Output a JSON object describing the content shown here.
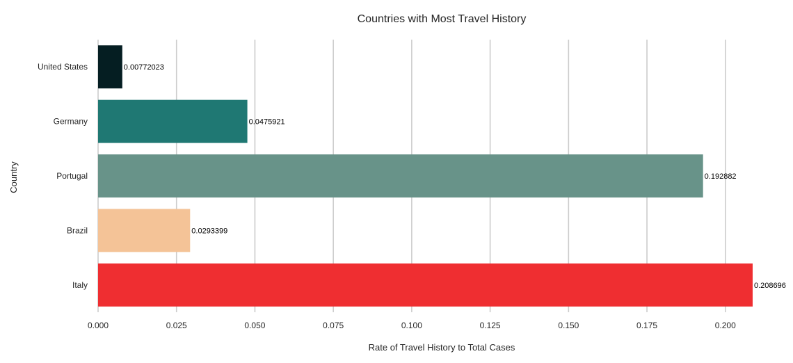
{
  "chart_data": {
    "type": "bar",
    "orientation": "horizontal",
    "title": "Countries with Most Travel History",
    "xlabel": "Rate of Travel History to Total Cases",
    "ylabel": "Country",
    "categories": [
      "United States",
      "Germany",
      "Portugal",
      "Brazil",
      "Italy"
    ],
    "values": [
      0.00772023,
      0.0475921,
      0.192882,
      0.0293399,
      0.208696
    ],
    "value_labels": [
      "0.00772023",
      "0.0475921",
      "0.192882",
      "0.0293399",
      "0.208696"
    ],
    "colors": [
      "#051e22",
      "#1f7873",
      "#689389",
      "#f4c397",
      "#ef2e31"
    ],
    "xlim": [
      0,
      0.2087
    ],
    "xticks": [
      0.0,
      0.025,
      0.05,
      0.075,
      0.1,
      0.125,
      0.15,
      0.175,
      0.2
    ],
    "xtick_labels": [
      "0.000",
      "0.025",
      "0.050",
      "0.075",
      "0.100",
      "0.125",
      "0.150",
      "0.175",
      "0.200"
    ],
    "grid": "vertical"
  }
}
